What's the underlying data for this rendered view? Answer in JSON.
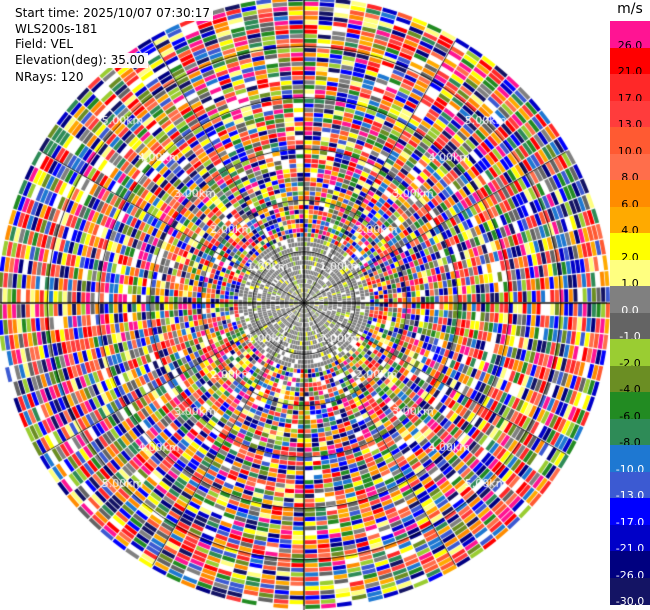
{
  "info": {
    "start_time": "Start time: 2025/10/07 07:30:17",
    "site": "WLS200s-181",
    "field": "Field: VEL",
    "elevation": "Elevation(deg): 35.00",
    "nrays": "NRays: 120"
  },
  "chart_data": {
    "type": "heatmap",
    "projection": "polar",
    "field": "VEL",
    "n_rays": 120,
    "range_rings_km": [
      1.0,
      2.0,
      3.0,
      4.0,
      5.0
    ],
    "range_ring_labels": [
      "1.00km",
      "2.00km",
      "3.00km",
      "4.00km",
      "5.00km"
    ],
    "max_range_km": 5.9,
    "colorbar": {
      "units": "m/s",
      "tick_labels": [
        "26.0",
        "21.0",
        "17.0",
        "13.0",
        "10.0",
        "8.0",
        "6.0",
        "4.0",
        "2.0",
        "1.0",
        "0.0",
        "-1.0",
        "-2.0",
        "-4.0",
        "-6.0",
        "-8.0",
        "-10.0",
        "-13.0",
        "-17.0",
        "-21.0",
        "-26.0",
        "-30.0"
      ],
      "colors": [
        "#ff1493",
        "#ff0000",
        "#ff2828",
        "#ff3c3c",
        "#ff5a32",
        "#ff6e4b",
        "#ff8c00",
        "#ffaa00",
        "#ffff00",
        "#ffff80",
        "#808080",
        "#646464",
        "#9acd32",
        "#6b8e23",
        "#228b22",
        "#2e8b57",
        "#1e78d2",
        "#3c5ad2",
        "#0000ff",
        "#0000c8",
        "#000080",
        "#141464"
      ]
    }
  }
}
